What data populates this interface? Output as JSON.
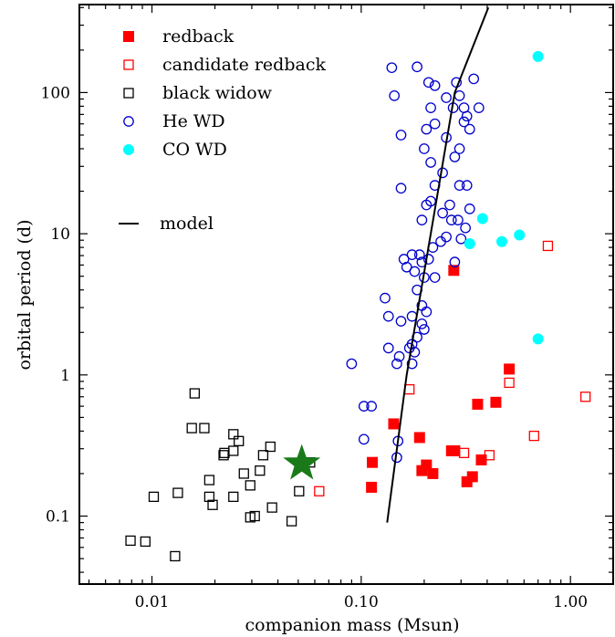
{
  "chart_data": {
    "type": "scatter",
    "xlabel": "companion mass (Msun)",
    "ylabel": "orbital period (d)",
    "xscale": "log",
    "yscale": "log",
    "xlim": [
      0.0045,
      1.6
    ],
    "ylim": [
      0.033,
      420
    ],
    "x_ticks": [
      {
        "value": 0.01,
        "label": "0.01"
      },
      {
        "value": 0.1,
        "label": "0.10"
      },
      {
        "value": 1.0,
        "label": "1.00"
      }
    ],
    "y_ticks": [
      {
        "value": 0.1,
        "label": "0.1"
      },
      {
        "value": 1,
        "label": "1"
      },
      {
        "value": 10,
        "label": "10"
      },
      {
        "value": 100,
        "label": "100"
      }
    ],
    "legend_position": "top-left",
    "series": [
      {
        "name": "redback",
        "marker": "filled-square",
        "color": "#ff0000",
        "points": [
          [
            0.113,
            0.24
          ],
          [
            0.112,
            0.16
          ],
          [
            0.143,
            0.45
          ],
          [
            0.19,
            0.36
          ],
          [
            0.205,
            0.23
          ],
          [
            0.195,
            0.21
          ],
          [
            0.22,
            0.2
          ],
          [
            0.27,
            0.29
          ],
          [
            0.28,
            0.29
          ],
          [
            0.32,
            0.175
          ],
          [
            0.34,
            0.19
          ],
          [
            0.375,
            0.25
          ],
          [
            0.36,
            0.62
          ],
          [
            0.44,
            0.64
          ],
          [
            0.51,
            1.1
          ],
          [
            0.277,
            5.5
          ]
        ]
      },
      {
        "name": "candidate redback",
        "marker": "open-square",
        "color": "#ff0000",
        "points": [
          [
            0.063,
            0.15
          ],
          [
            0.17,
            0.79
          ],
          [
            0.31,
            0.28
          ],
          [
            0.41,
            0.27
          ],
          [
            0.51,
            0.88
          ],
          [
            0.67,
            0.37
          ],
          [
            1.18,
            0.7
          ],
          [
            0.78,
            8.2
          ]
        ]
      },
      {
        "name": "black widow",
        "marker": "open-square",
        "color": "#000000",
        "points": [
          [
            0.0079,
            0.067
          ],
          [
            0.0093,
            0.066
          ],
          [
            0.0102,
            0.137
          ],
          [
            0.0129,
            0.052
          ],
          [
            0.0133,
            0.146
          ],
          [
            0.0155,
            0.42
          ],
          [
            0.016,
            0.74
          ],
          [
            0.0178,
            0.42
          ],
          [
            0.0188,
            0.18
          ],
          [
            0.0188,
            0.137
          ],
          [
            0.0195,
            0.12
          ],
          [
            0.022,
            0.27
          ],
          [
            0.0222,
            0.28
          ],
          [
            0.0245,
            0.29
          ],
          [
            0.0245,
            0.38
          ],
          [
            0.0245,
            0.137
          ],
          [
            0.026,
            0.34
          ],
          [
            0.0275,
            0.2
          ],
          [
            0.0295,
            0.165
          ],
          [
            0.0295,
            0.098
          ],
          [
            0.031,
            0.1
          ],
          [
            0.0328,
            0.21
          ],
          [
            0.034,
            0.27
          ],
          [
            0.0368,
            0.31
          ],
          [
            0.0375,
            0.115
          ],
          [
            0.0465,
            0.092
          ],
          [
            0.0505,
            0.15
          ],
          [
            0.057,
            0.24
          ]
        ]
      },
      {
        "name": "He WD",
        "marker": "open-circle",
        "color": "#0000cc",
        "points": [
          [
            0.14,
            150
          ],
          [
            0.144,
            95
          ],
          [
            0.185,
            152
          ],
          [
            0.21,
            118
          ],
          [
            0.225,
            112
          ],
          [
            0.255,
            92
          ],
          [
            0.285,
            118
          ],
          [
            0.295,
            95
          ],
          [
            0.345,
            125
          ],
          [
            0.275,
            78
          ],
          [
            0.31,
            78
          ],
          [
            0.365,
            78
          ],
          [
            0.215,
            78
          ],
          [
            0.32,
            68
          ],
          [
            0.31,
            62
          ],
          [
            0.33,
            55
          ],
          [
            0.225,
            60
          ],
          [
            0.205,
            55
          ],
          [
            0.155,
            50
          ],
          [
            0.255,
            48
          ],
          [
            0.2,
            40
          ],
          [
            0.295,
            40
          ],
          [
            0.28,
            35
          ],
          [
            0.215,
            32
          ],
          [
            0.32,
            22
          ],
          [
            0.245,
            27
          ],
          [
            0.225,
            22
          ],
          [
            0.295,
            22
          ],
          [
            0.155,
            21
          ],
          [
            0.33,
            15
          ],
          [
            0.205,
            16
          ],
          [
            0.215,
            17
          ],
          [
            0.245,
            14
          ],
          [
            0.265,
            16
          ],
          [
            0.195,
            12.5
          ],
          [
            0.27,
            12.5
          ],
          [
            0.29,
            12.5
          ],
          [
            0.315,
            11
          ],
          [
            0.255,
            9.5
          ],
          [
            0.3,
            9.2
          ],
          [
            0.24,
            8.8
          ],
          [
            0.22,
            8.0
          ],
          [
            0.19,
            7.1
          ],
          [
            0.175,
            7.1
          ],
          [
            0.16,
            6.6
          ],
          [
            0.195,
            6.3
          ],
          [
            0.21,
            6.6
          ],
          [
            0.28,
            6.3
          ],
          [
            0.165,
            5.8
          ],
          [
            0.18,
            5.4
          ],
          [
            0.2,
            4.9
          ],
          [
            0.225,
            4.9
          ],
          [
            0.185,
            4.0
          ],
          [
            0.13,
            3.5
          ],
          [
            0.195,
            3.1
          ],
          [
            0.205,
            2.8
          ],
          [
            0.175,
            2.6
          ],
          [
            0.135,
            2.6
          ],
          [
            0.155,
            2.4
          ],
          [
            0.195,
            2.3
          ],
          [
            0.2,
            2.1
          ],
          [
            0.185,
            1.85
          ],
          [
            0.175,
            1.65
          ],
          [
            0.17,
            1.55
          ],
          [
            0.18,
            1.45
          ],
          [
            0.135,
            1.55
          ],
          [
            0.152,
            1.35
          ],
          [
            0.09,
            1.2
          ],
          [
            0.175,
            1.2
          ],
          [
            0.148,
            1.2
          ],
          [
            0.103,
            0.6
          ],
          [
            0.112,
            0.6
          ],
          [
            0.103,
            0.35
          ],
          [
            0.15,
            0.34
          ],
          [
            0.148,
            0.26
          ]
        ]
      },
      {
        "name": "CO WD",
        "marker": "filled-circle",
        "color": "#00ffff",
        "points": [
          [
            0.7,
            180
          ],
          [
            0.38,
            12.8
          ],
          [
            0.33,
            8.5
          ],
          [
            0.47,
            8.8
          ],
          [
            0.57,
            9.8
          ],
          [
            0.7,
            1.8
          ]
        ]
      },
      {
        "name": "model",
        "marker": "line",
        "color": "#000000",
        "points": [
          [
            0.133,
            0.09
          ],
          [
            0.165,
            1.0
          ],
          [
            0.215,
            10
          ],
          [
            0.28,
            100
          ],
          [
            0.405,
            400
          ]
        ]
      }
    ],
    "annotations": [
      {
        "marker": "star",
        "color": "#1a7a1a",
        "x": 0.052,
        "y": 0.235
      }
    ]
  }
}
